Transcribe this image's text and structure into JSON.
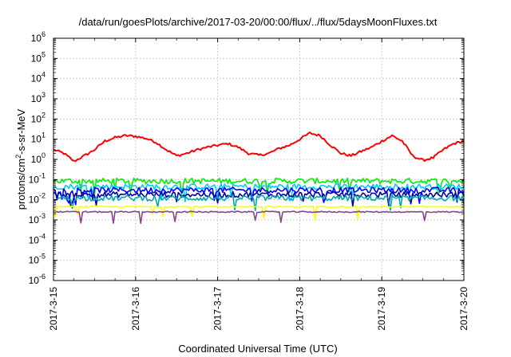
{
  "chart_data": {
    "type": "line",
    "title": "/data/run/goesPlots/archive/2017-03-20/00:00/flux/../flux/5daysMoonFluxes.txt",
    "xlabel": "Coordinated Universal Time (UTC)",
    "ylabel": "protons/cm²-s-sr-MeV",
    "ylabel_parts": {
      "pre": "protons/cm",
      "sup": "2",
      "post": "-s-sr-MeV"
    },
    "y_scale": "log",
    "ylim": [
      1e-06,
      1000000.0
    ],
    "y_ticks": [
      {
        "mantissa": "10",
        "exp": "-6",
        "value": 1e-06
      },
      {
        "mantissa": "10",
        "exp": "-5",
        "value": 1e-05
      },
      {
        "mantissa": "10",
        "exp": "-4",
        "value": 0.0001
      },
      {
        "mantissa": "10",
        "exp": "-3",
        "value": 0.001
      },
      {
        "mantissa": "10",
        "exp": "-2",
        "value": 0.01
      },
      {
        "mantissa": "10",
        "exp": "-1",
        "value": 0.1
      },
      {
        "mantissa": "10",
        "exp": "0",
        "value": 1.0
      },
      {
        "mantissa": "10",
        "exp": "1",
        "value": 10.0
      },
      {
        "mantissa": "10",
        "exp": "2",
        "value": 100.0
      },
      {
        "mantissa": "10",
        "exp": "3",
        "value": 1000.0
      },
      {
        "mantissa": "10",
        "exp": "4",
        "value": 10000.0
      },
      {
        "mantissa": "10",
        "exp": "5",
        "value": 100000.0
      },
      {
        "mantissa": "10",
        "exp": "6",
        "value": 1000000.0
      }
    ],
    "x_ticks": [
      "2017-3-15",
      "2017-3-16",
      "2017-3-17",
      "2017-3-18",
      "2017-3-19",
      "2017-3-20"
    ],
    "xlim": [
      "2017-03-15",
      "2017-03-20"
    ],
    "grid": true,
    "legend": "none",
    "series": [
      {
        "color": "#ff0000",
        "x": [
          "2017-03-15 00:00",
          "2017-03-15 03:00",
          "2017-03-15 06:00",
          "2017-03-15 09:00",
          "2017-03-15 12:00",
          "2017-03-15 15:00",
          "2017-03-15 18:00",
          "2017-03-15 21:00",
          "2017-03-16 00:00",
          "2017-03-16 03:00",
          "2017-03-16 06:00",
          "2017-03-16 09:00",
          "2017-03-16 12:00",
          "2017-03-16 15:00",
          "2017-03-16 18:00",
          "2017-03-16 21:00",
          "2017-03-17 00:00",
          "2017-03-17 03:00",
          "2017-03-17 06:00",
          "2017-03-17 09:00",
          "2017-03-17 12:00",
          "2017-03-17 15:00",
          "2017-03-17 18:00",
          "2017-03-17 21:00",
          "2017-03-18 00:00",
          "2017-03-18 03:00",
          "2017-03-18 06:00",
          "2017-03-18 09:00",
          "2017-03-18 12:00",
          "2017-03-18 15:00",
          "2017-03-18 18:00",
          "2017-03-18 21:00",
          "2017-03-19 00:00",
          "2017-03-19 03:00",
          "2017-03-19 06:00",
          "2017-03-19 09:00",
          "2017-03-19 12:00",
          "2017-03-19 15:00",
          "2017-03-19 18:00",
          "2017-03-19 21:00",
          "2017-03-20 00:00"
        ],
        "y": [
          3,
          2,
          0.8,
          1.5,
          3,
          8,
          12,
          15,
          14,
          11,
          7,
          3,
          1.5,
          2,
          3,
          4,
          5,
          6,
          4,
          2,
          1.6,
          2,
          3.5,
          5,
          10,
          20,
          15,
          5,
          2,
          1.5,
          2.5,
          4,
          8,
          15,
          8,
          1.5,
          0.9,
          1.2,
          3,
          6,
          8
        ]
      },
      {
        "color": "#00ee00",
        "base": 0.085
      },
      {
        "color": "#00ccff",
        "base": 0.045
      },
      {
        "color": "#0000ff",
        "base": 0.03
      },
      {
        "color": "#0000aa",
        "base": 0.018
      },
      {
        "color": "#00aaaa",
        "base": 0.012
      },
      {
        "color": "#ffff00",
        "base": 0.0045
      },
      {
        "color": "#884488",
        "base": 0.0025
      }
    ]
  }
}
